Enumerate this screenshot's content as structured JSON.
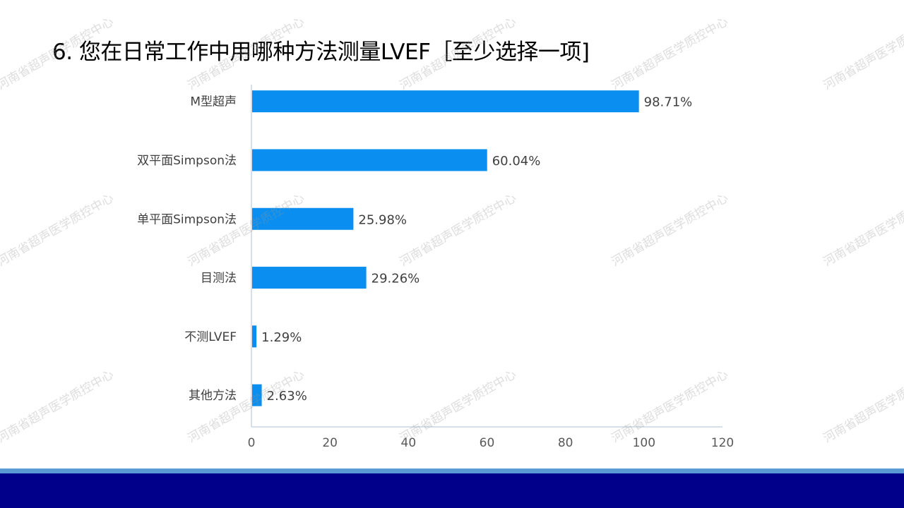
{
  "slide": {
    "title": "6. 您在日常工作中用哪种方法测量LVEF［至少选择一项]",
    "watermark_text": "河南省超声医学质控中心"
  },
  "colors": {
    "bar": "#0a8ff0",
    "axis": "#c9d6e3",
    "footer_light": "#5b9bd5",
    "footer_dark": "#00008b"
  },
  "chart_data": {
    "type": "bar",
    "orientation": "horizontal",
    "categories": [
      "M型超声",
      "双平面Simpson法",
      "单平面Simpson法",
      "目测法",
      "不测LVEF",
      "其他方法"
    ],
    "values": [
      98.71,
      60.04,
      25.98,
      29.26,
      1.29,
      2.63
    ],
    "data_labels": [
      "98.71%",
      "60.04%",
      "25.98%",
      "29.26%",
      "1.29%",
      "2.63%"
    ],
    "xlim": [
      0,
      120
    ],
    "x_ticks": [
      0,
      20,
      40,
      60,
      80,
      100,
      120
    ],
    "grid": false,
    "legend": "none"
  }
}
